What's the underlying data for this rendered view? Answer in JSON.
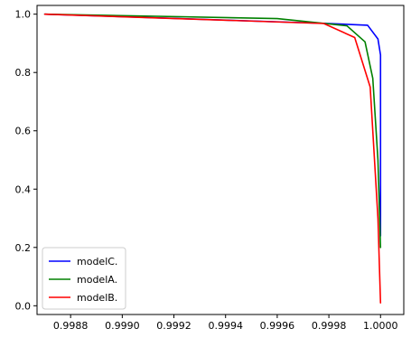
{
  "chart_data": {
    "type": "line",
    "title": "",
    "xlabel": "",
    "ylabel": "",
    "xlim": [
      0.99867,
      1.00009
    ],
    "ylim": [
      -0.03,
      1.03
    ],
    "x_ticks": [
      {
        "value": 0.9988,
        "label": "0.9988"
      },
      {
        "value": 0.999,
        "label": "0.9990"
      },
      {
        "value": 0.9992,
        "label": "0.9992"
      },
      {
        "value": 0.9994,
        "label": "0.9994"
      },
      {
        "value": 0.9996,
        "label": "0.9996"
      },
      {
        "value": 0.9998,
        "label": "0.9998"
      },
      {
        "value": 1.0,
        "label": "1.0000"
      }
    ],
    "y_ticks": [
      {
        "value": 0.0,
        "label": "0.0"
      },
      {
        "value": 0.2,
        "label": "0.2"
      },
      {
        "value": 0.4,
        "label": "0.4"
      },
      {
        "value": 0.6,
        "label": "0.6"
      },
      {
        "value": 0.8,
        "label": "0.8"
      },
      {
        "value": 1.0,
        "label": "1.0"
      }
    ],
    "grid": false,
    "legend_position": "lower-left",
    "series": [
      {
        "name": "modelC.",
        "color": "#0000ff",
        "x": [
          0.9987,
          0.9998,
          0.99995,
          0.99999,
          1.0,
          1.0,
          1.0
        ],
        "y": [
          1.0,
          0.968,
          0.962,
          0.915,
          0.86,
          0.5,
          0.24
        ]
      },
      {
        "name": "modelA.",
        "color": "#008000",
        "x": [
          0.9987,
          0.9996,
          0.99987,
          0.99994,
          0.99997,
          0.99999,
          1.0
        ],
        "y": [
          1.0,
          0.985,
          0.96,
          0.905,
          0.78,
          0.5,
          0.2
        ]
      },
      {
        "name": "modelB.",
        "color": "#ff0000",
        "x": [
          0.9987,
          0.99978,
          0.9999,
          0.99996,
          0.99999,
          1.0
        ],
        "y": [
          1.0,
          0.968,
          0.92,
          0.75,
          0.3,
          0.01
        ]
      }
    ]
  }
}
